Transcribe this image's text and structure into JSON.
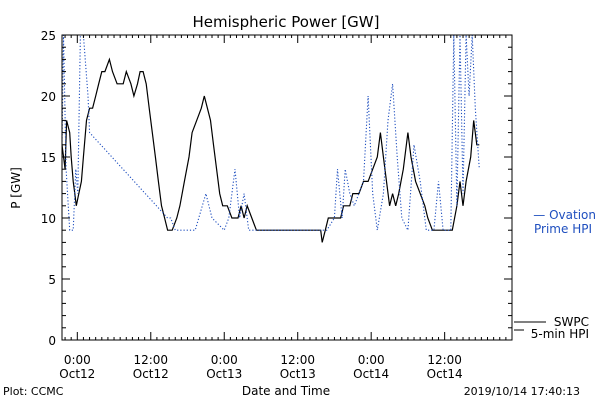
{
  "chart_data": {
    "type": "line",
    "title": "Hemispheric Power [GW]",
    "xlabel": "Date and Time",
    "ylabel": "P [GW]",
    "xlim": [
      "2019-10-11T21:30",
      "2019-10-14T23:00"
    ],
    "ylim": [
      0,
      25
    ],
    "yticks": [
      0,
      5,
      10,
      15,
      20,
      25
    ],
    "grid": false,
    "x_ticks": [
      {
        "x": "2019-10-12T00:00",
        "label_top": "0:00",
        "label_bottom": "Oct12"
      },
      {
        "x": "2019-10-12T12:00",
        "label_top": "12:00",
        "label_bottom": "Oct12"
      },
      {
        "x": "2019-10-13T00:00",
        "label_top": "0:00",
        "label_bottom": "Oct13"
      },
      {
        "x": "2019-10-13T12:00",
        "label_top": "12:00",
        "label_bottom": "Oct13"
      },
      {
        "x": "2019-10-14T00:00",
        "label_top": "0:00",
        "label_bottom": "Oct14"
      },
      {
        "x": "2019-10-14T12:00",
        "label_top": "12:00",
        "label_bottom": "Oct14"
      }
    ],
    "series": [
      {
        "name": "SWPC 5-min HPI",
        "color": "#000000",
        "style": "solid",
        "points": [
          [
            "2019-10-11T21:30",
            16
          ],
          [
            "2019-10-11T22:00",
            14
          ],
          [
            "2019-10-11T22:15",
            18
          ],
          [
            "2019-10-11T22:45",
            17
          ],
          [
            "2019-10-11T23:00",
            15
          ],
          [
            "2019-10-11T23:20",
            13
          ],
          [
            "2019-10-11T23:35",
            12
          ],
          [
            "2019-10-11T23:50",
            11
          ],
          [
            "2019-10-12T00:15",
            12
          ],
          [
            "2019-10-12T00:40",
            13
          ],
          [
            "2019-10-12T01:00",
            15
          ],
          [
            "2019-10-12T01:30",
            18
          ],
          [
            "2019-10-12T02:00",
            19
          ],
          [
            "2019-10-12T02:30",
            19
          ],
          [
            "2019-10-12T03:00",
            20
          ],
          [
            "2019-10-12T03:30",
            21
          ],
          [
            "2019-10-12T04:00",
            22
          ],
          [
            "2019-10-12T04:30",
            22
          ],
          [
            "2019-10-12T05:15",
            23
          ],
          [
            "2019-10-12T05:45",
            22
          ],
          [
            "2019-10-12T06:30",
            21
          ],
          [
            "2019-10-12T07:30",
            21
          ],
          [
            "2019-10-12T08:00",
            22
          ],
          [
            "2019-10-12T08:45",
            21
          ],
          [
            "2019-10-12T09:15",
            20
          ],
          [
            "2019-10-12T09:50",
            21
          ],
          [
            "2019-10-12T10:15",
            22
          ],
          [
            "2019-10-12T10:45",
            22
          ],
          [
            "2019-10-12T11:15",
            21
          ],
          [
            "2019-10-12T11:45",
            19
          ],
          [
            "2019-10-12T12:15",
            17
          ],
          [
            "2019-10-12T12:45",
            15
          ],
          [
            "2019-10-12T13:15",
            13
          ],
          [
            "2019-10-12T13:45",
            11
          ],
          [
            "2019-10-12T14:15",
            10
          ],
          [
            "2019-10-12T14:45",
            9
          ],
          [
            "2019-10-12T15:30",
            9
          ],
          [
            "2019-10-12T16:15",
            10
          ],
          [
            "2019-10-12T16:45",
            11
          ],
          [
            "2019-10-12T17:30",
            13
          ],
          [
            "2019-10-12T18:15",
            15
          ],
          [
            "2019-10-12T18:45",
            17
          ],
          [
            "2019-10-12T19:30",
            18
          ],
          [
            "2019-10-12T20:15",
            19
          ],
          [
            "2019-10-12T20:45",
            20
          ],
          [
            "2019-10-12T21:15",
            19
          ],
          [
            "2019-10-12T21:45",
            18
          ],
          [
            "2019-10-12T22:15",
            16
          ],
          [
            "2019-10-12T22:45",
            14
          ],
          [
            "2019-10-12T23:15",
            12
          ],
          [
            "2019-10-12T23:45",
            11
          ],
          [
            "2019-10-13T00:30",
            11
          ],
          [
            "2019-10-13T01:15",
            10
          ],
          [
            "2019-10-13T02:15",
            10
          ],
          [
            "2019-10-13T02:45",
            11
          ],
          [
            "2019-10-13T03:15",
            10
          ],
          [
            "2019-10-13T03:45",
            11
          ],
          [
            "2019-10-13T04:30",
            10
          ],
          [
            "2019-10-13T05:15",
            9
          ],
          [
            "2019-10-13T06:00",
            9
          ],
          [
            "2019-10-13T09:00",
            9
          ],
          [
            "2019-10-13T12:00",
            9
          ],
          [
            "2019-10-13T15:00",
            9
          ],
          [
            "2019-10-13T15:45",
            9
          ],
          [
            "2019-10-13T16:00",
            8
          ],
          [
            "2019-10-13T16:30",
            9
          ],
          [
            "2019-10-13T17:00",
            10
          ],
          [
            "2019-10-13T18:00",
            10
          ],
          [
            "2019-10-13T19:00",
            10
          ],
          [
            "2019-10-13T19:30",
            11
          ],
          [
            "2019-10-13T20:30",
            11
          ],
          [
            "2019-10-13T21:00",
            12
          ],
          [
            "2019-10-13T22:00",
            12
          ],
          [
            "2019-10-13T22:45",
            13
          ],
          [
            "2019-10-13T23:30",
            13
          ],
          [
            "2019-10-14T00:15",
            14
          ],
          [
            "2019-10-14T01:00",
            15
          ],
          [
            "2019-10-14T01:30",
            17
          ],
          [
            "2019-10-14T02:00",
            15
          ],
          [
            "2019-10-14T02:30",
            13
          ],
          [
            "2019-10-14T03:00",
            11
          ],
          [
            "2019-10-14T03:30",
            12
          ],
          [
            "2019-10-14T04:00",
            11
          ],
          [
            "2019-10-14T04:30",
            12
          ],
          [
            "2019-10-14T05:15",
            14
          ],
          [
            "2019-10-14T06:00",
            17
          ],
          [
            "2019-10-14T06:30",
            15
          ],
          [
            "2019-10-14T07:15",
            13
          ],
          [
            "2019-10-14T08:00",
            12
          ],
          [
            "2019-10-14T08:45",
            11
          ],
          [
            "2019-10-14T09:15",
            10
          ],
          [
            "2019-10-14T10:00",
            9
          ],
          [
            "2019-10-14T12:00",
            9
          ],
          [
            "2019-10-14T13:15",
            9
          ],
          [
            "2019-10-14T14:00",
            11
          ],
          [
            "2019-10-14T14:30",
            13
          ],
          [
            "2019-10-14T15:00",
            11
          ],
          [
            "2019-10-14T15:30",
            13
          ],
          [
            "2019-10-14T16:15",
            15
          ],
          [
            "2019-10-14T16:45",
            18
          ],
          [
            "2019-10-14T17:15",
            16
          ],
          [
            "2019-10-14T17:40",
            16
          ]
        ]
      },
      {
        "name": "Ovation Prime HPI",
        "color": "#1f4fbf",
        "style": "dotted",
        "points": [
          [
            "2019-10-11T21:30",
            16
          ],
          [
            "2019-10-11T21:45",
            25
          ],
          [
            "2019-10-11T22:10",
            14
          ],
          [
            "2019-10-11T22:45",
            9
          ],
          [
            "2019-10-11T23:20",
            9
          ],
          [
            "2019-10-11T23:45",
            14
          ],
          [
            "2019-10-12T00:05",
            12
          ],
          [
            "2019-10-12T00:30",
            25
          ],
          [
            "2019-10-12T01:00",
            25
          ],
          [
            "2019-10-12T01:45",
            20
          ],
          [
            "2019-10-12T02:00",
            17
          ],
          [
            "2019-10-12T14:45",
            10
          ],
          [
            "2019-10-12T15:15",
            10
          ],
          [
            "2019-10-12T16:00",
            9
          ],
          [
            "2019-10-12T19:15",
            9
          ],
          [
            "2019-10-12T21:00",
            12
          ],
          [
            "2019-10-12T22:00",
            10
          ],
          [
            "2019-10-13T00:00",
            9
          ],
          [
            "2019-10-13T00:45",
            10
          ],
          [
            "2019-10-13T01:45",
            14
          ],
          [
            "2019-10-13T02:30",
            10
          ],
          [
            "2019-10-13T03:15",
            12
          ],
          [
            "2019-10-13T04:00",
            9
          ],
          [
            "2019-10-13T07:00",
            9
          ],
          [
            "2019-10-13T10:00",
            9
          ],
          [
            "2019-10-13T13:00",
            9
          ],
          [
            "2019-10-13T16:45",
            9
          ],
          [
            "2019-10-13T18:00",
            10
          ],
          [
            "2019-10-13T18:30",
            14
          ],
          [
            "2019-10-13T19:15",
            10
          ],
          [
            "2019-10-13T19:45",
            14
          ],
          [
            "2019-10-13T20:30",
            12
          ],
          [
            "2019-10-13T21:15",
            11
          ],
          [
            "2019-10-13T22:00",
            12
          ],
          [
            "2019-10-13T22:45",
            13
          ],
          [
            "2019-10-13T23:30",
            20
          ],
          [
            "2019-10-14T00:15",
            12
          ],
          [
            "2019-10-14T01:00",
            9
          ],
          [
            "2019-10-14T02:00",
            12
          ],
          [
            "2019-10-14T02:45",
            18
          ],
          [
            "2019-10-14T03:30",
            21
          ],
          [
            "2019-10-14T04:15",
            15
          ],
          [
            "2019-10-14T05:00",
            10
          ],
          [
            "2019-10-14T06:00",
            9
          ],
          [
            "2019-10-14T07:00",
            16
          ],
          [
            "2019-10-14T08:00",
            13
          ],
          [
            "2019-10-14T09:00",
            9
          ],
          [
            "2019-10-14T10:15",
            9
          ],
          [
            "2019-10-14T11:00",
            13
          ],
          [
            "2019-10-14T11:45",
            9
          ],
          [
            "2019-10-14T13:00",
            9
          ],
          [
            "2019-10-14T13:30",
            25
          ],
          [
            "2019-10-14T14:00",
            11
          ],
          [
            "2019-10-14T14:30",
            25
          ],
          [
            "2019-10-14T15:00",
            12
          ],
          [
            "2019-10-14T15:30",
            25
          ],
          [
            "2019-10-14T16:00",
            20
          ],
          [
            "2019-10-14T16:30",
            25
          ],
          [
            "2019-10-14T17:00",
            19
          ],
          [
            "2019-10-14T17:40",
            14
          ]
        ]
      }
    ],
    "legend": {
      "placement": "right",
      "entries": [
        {
          "series": "Ovation Prime HPI",
          "lines": [
            "— Ovation",
            "Prime HPI"
          ],
          "color": "#1f4fbf"
        },
        {
          "series": "SWPC 5-min HPI",
          "lines": [
            "SWPC",
            "5-min HPI"
          ],
          "color": "#000000"
        }
      ]
    },
    "footer": {
      "left": "Plot: CCMC",
      "right": "2019/10/14 17:40:13"
    }
  }
}
